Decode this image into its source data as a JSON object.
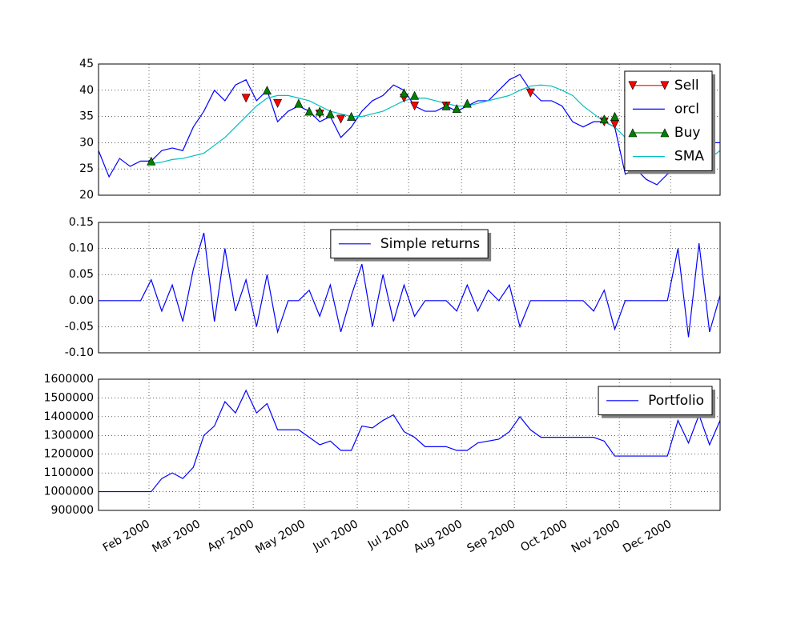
{
  "chart_data": [
    {
      "type": "line",
      "ylim": [
        20,
        45
      ],
      "yticks": [
        20,
        25,
        30,
        35,
        40,
        45
      ],
      "grid": true,
      "legend": "upper right",
      "series": [
        {
          "name": "Sell",
          "color": "#ff0000",
          "marker": "triangle-down",
          "values": [
            null,
            null,
            null,
            null,
            null,
            null,
            null,
            null,
            null,
            null,
            null,
            null,
            null,
            null,
            38.5,
            null,
            null,
            37.5,
            null,
            null,
            null,
            35.5,
            null,
            34.5,
            null,
            null,
            null,
            null,
            null,
            38.5,
            37,
            null,
            null,
            37,
            null,
            null,
            null,
            null,
            null,
            null,
            null,
            39.5,
            null,
            null,
            null,
            null,
            null,
            null,
            34,
            33.5,
            null,
            null,
            null,
            null,
            null,
            null,
            null,
            null,
            null,
            null
          ]
        },
        {
          "name": "orcl",
          "color": "#0000ff",
          "values": [
            28.5,
            23.5,
            27,
            25.5,
            26.5,
            26.5,
            28.5,
            29,
            28.5,
            33,
            36,
            40,
            38,
            41,
            42,
            38,
            40,
            34,
            36,
            37,
            36,
            34,
            35,
            31,
            33,
            36,
            38,
            39,
            41,
            40,
            37,
            36,
            36,
            37,
            36,
            37,
            38,
            38,
            40,
            42,
            43,
            40,
            38,
            38,
            37,
            34,
            33,
            34,
            34,
            33,
            24,
            25,
            23,
            22,
            24,
            25,
            27,
            28,
            30,
            30
          ]
        },
        {
          "name": "Buy",
          "color": "#008000",
          "marker": "triangle-up",
          "values": [
            null,
            null,
            null,
            null,
            null,
            26.5,
            null,
            null,
            null,
            null,
            null,
            null,
            null,
            null,
            null,
            null,
            40,
            null,
            null,
            37.5,
            36,
            36,
            35.5,
            null,
            35,
            null,
            null,
            null,
            null,
            39.5,
            39,
            null,
            null,
            37,
            36.5,
            37.5,
            null,
            null,
            null,
            null,
            null,
            null,
            null,
            null,
            null,
            null,
            null,
            null,
            34.5,
            35,
            null,
            null,
            null,
            null,
            25.5,
            null,
            null,
            null,
            null,
            null
          ]
        },
        {
          "name": "SMA",
          "color": "#00bfbf",
          "values": [
            null,
            null,
            null,
            null,
            null,
            26,
            26.3,
            26.8,
            27,
            27.5,
            28,
            29.5,
            31,
            33,
            35,
            37,
            38.5,
            39,
            39,
            38.5,
            38,
            37,
            36,
            35.5,
            35,
            35,
            35.5,
            36,
            37,
            38,
            38.5,
            38.5,
            38,
            37.5,
            37,
            37,
            37.5,
            38,
            38.5,
            39,
            40,
            40.8,
            41,
            40.8,
            40,
            39,
            37,
            35.5,
            34,
            33,
            31,
            29.5,
            28,
            26.5,
            25,
            25,
            25.5,
            26,
            27,
            28.5
          ]
        }
      ]
    },
    {
      "type": "line",
      "ylim": [
        -0.1,
        0.15
      ],
      "yticks": [
        {
          "value": -0.1,
          "label": "-0.10"
        },
        {
          "value": -0.05,
          "label": "-0.05"
        },
        {
          "value": 0,
          "label": "0.00"
        },
        {
          "value": 0.05,
          "label": "0.05"
        },
        {
          "value": 0.1,
          "label": "0.10"
        },
        {
          "value": 0.15,
          "label": "0.15"
        }
      ],
      "grid": true,
      "legend": "upper center",
      "series": [
        {
          "name": "Simple returns",
          "color": "#0000ff",
          "values": [
            0,
            0,
            0,
            0,
            0,
            0.04,
            -0.02,
            0.03,
            -0.04,
            0.06,
            0.13,
            -0.04,
            0.1,
            -0.02,
            0.04,
            -0.05,
            0.05,
            -0.06,
            0,
            0,
            0.02,
            -0.03,
            0.03,
            -0.06,
            0.01,
            0.07,
            -0.05,
            0.05,
            -0.04,
            0.03,
            -0.03,
            0,
            0,
            0,
            -0.02,
            0.03,
            -0.02,
            0.02,
            0,
            0.03,
            -0.05,
            0,
            0,
            0,
            0,
            0,
            0,
            -0.02,
            0.02,
            -0.055,
            0,
            0,
            0,
            0,
            0,
            0.1,
            -0.07,
            0.11,
            -0.06,
            0.01
          ]
        }
      ]
    },
    {
      "type": "line",
      "ylim": [
        900000,
        1600000
      ],
      "yticks": [
        900000,
        1000000,
        1100000,
        1200000,
        1300000,
        1400000,
        1500000,
        1600000
      ],
      "grid": true,
      "legend": "upper right",
      "categories": [
        null,
        null,
        null,
        null,
        null,
        null,
        null,
        null,
        null,
        null,
        null,
        null,
        null,
        null,
        null,
        null,
        null,
        null,
        null,
        null,
        null,
        null,
        null,
        null,
        null,
        null,
        null,
        null,
        null,
        null,
        null,
        null,
        null,
        null,
        null,
        null,
        null,
        null,
        null,
        null,
        null,
        null,
        null,
        null,
        null,
        null,
        null,
        null,
        null,
        null,
        null,
        null,
        null,
        null,
        null,
        null,
        null,
        null,
        null,
        null
      ],
      "xlim": [
        0,
        59
      ],
      "xticks": [
        {
          "value": 4.79,
          "label": "Feb 2000"
        },
        {
          "value": 9.58,
          "label": "Mar 2000"
        },
        {
          "value": 14.68,
          "label": "Apr 2000"
        },
        {
          "value": 19.54,
          "label": "May 2000"
        },
        {
          "value": 24.56,
          "label": "Jun 2000"
        },
        {
          "value": 29.43,
          "label": "Jul 2000"
        },
        {
          "value": 34.45,
          "label": "Aug 2000"
        },
        {
          "value": 39.47,
          "label": "Sep 2000"
        },
        {
          "value": 44.41,
          "label": "Oct 2000"
        },
        {
          "value": 49.43,
          "label": "Nov 2000"
        },
        {
          "value": 54.3,
          "label": "Dec 2000"
        }
      ],
      "series": [
        {
          "name": "Portfolio",
          "color": "#0000ff",
          "values": [
            1000000,
            1000000,
            1000000,
            1000000,
            1000000,
            1000000,
            1070000,
            1100000,
            1070000,
            1130000,
            1300000,
            1350000,
            1480000,
            1420000,
            1540000,
            1420000,
            1470000,
            1330000,
            1330000,
            1330000,
            1290000,
            1250000,
            1270000,
            1220000,
            1220000,
            1350000,
            1340000,
            1380000,
            1410000,
            1320000,
            1290000,
            1240000,
            1240000,
            1240000,
            1220000,
            1220000,
            1260000,
            1270000,
            1280000,
            1320000,
            1400000,
            1330000,
            1290000,
            1290000,
            1290000,
            1290000,
            1290000,
            1290000,
            1270000,
            1190000,
            1190000,
            1190000,
            1190000,
            1190000,
            1190000,
            1380000,
            1260000,
            1410000,
            1250000,
            1380000
          ]
        }
      ]
    }
  ]
}
